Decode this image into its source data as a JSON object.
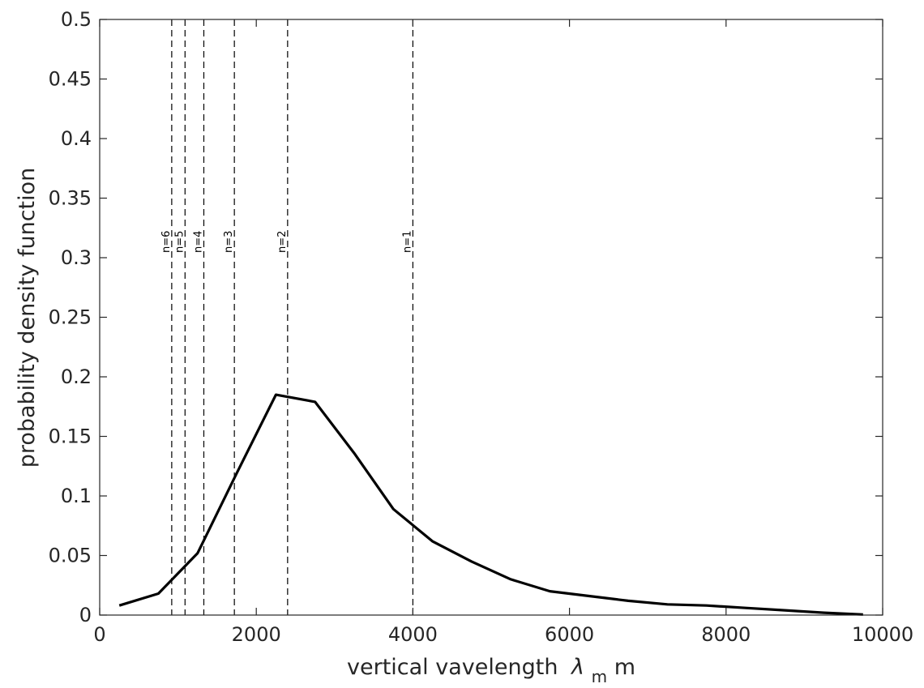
{
  "chart_data": {
    "type": "line",
    "xlabel": "vertical vavelength",
    "xlabel_symbol": "λ",
    "xlabel_subscript": "m",
    "xlabel_unit": " m",
    "ylabel": "probability density function",
    "xlim": [
      0,
      10000
    ],
    "ylim": [
      0,
      0.5
    ],
    "x_ticks": [
      0,
      2000,
      4000,
      6000,
      8000,
      10000
    ],
    "y_ticks": [
      0,
      0.05,
      0.1,
      0.15,
      0.2,
      0.25,
      0.3,
      0.35,
      0.4,
      0.45,
      0.5
    ],
    "x_tick_labels": [
      "0",
      "2000",
      "4000",
      "6000",
      "8000",
      "10000"
    ],
    "y_tick_labels": [
      "0",
      "0.05",
      "0.1",
      "0.15",
      "0.2",
      "0.25",
      "0.3",
      "0.35",
      "0.4",
      "0.45",
      "0.5"
    ],
    "grid": false,
    "series": [
      {
        "color": "#000000",
        "x": [
          250,
          750,
          1250,
          1750,
          2250,
          2750,
          3250,
          3750,
          4250,
          4750,
          5250,
          5750,
          6250,
          6750,
          7250,
          7750,
          8250,
          8750,
          9250,
          9750
        ],
        "y": [
          0.008,
          0.018,
          0.052,
          0.119,
          0.185,
          0.179,
          0.136,
          0.089,
          0.062,
          0.045,
          0.03,
          0.02,
          0.016,
          0.012,
          0.009,
          0.008,
          0.006,
          0.004,
          0.002,
          0.0005
        ]
      }
    ],
    "vertical_lines": [
      {
        "x": 4000,
        "label": "n=1"
      },
      {
        "x": 2400,
        "label": "n=2"
      },
      {
        "x": 1720,
        "label": "n=3"
      },
      {
        "x": 1330,
        "label": "n=4"
      },
      {
        "x": 1090,
        "label": "n=5"
      },
      {
        "x": 920,
        "label": "n=6"
      }
    ],
    "vertical_line_label_y": 0.3
  }
}
